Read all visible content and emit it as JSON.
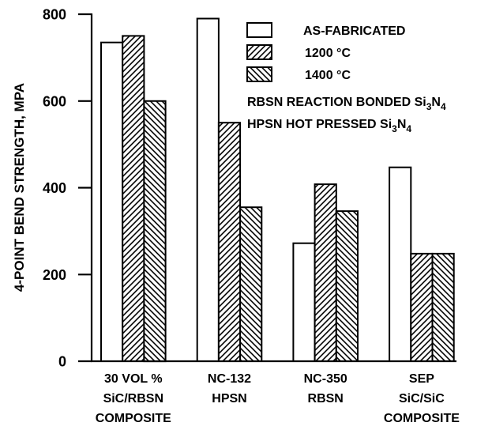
{
  "chart_data": {
    "type": "bar",
    "ylabel": "4-POINT BEND STRENGTH, MPA",
    "ylim": [
      0,
      800
    ],
    "yticks": [
      0,
      200,
      400,
      600,
      800
    ],
    "grid": false,
    "legend": "top-right",
    "categories": [
      [
        "30 VOL %",
        "SiC/RBSN",
        "COMPOSITE"
      ],
      [
        "NC-132",
        "HPSN"
      ],
      [
        "NC-350",
        "RBSN"
      ],
      [
        "SEP",
        "SiC/SiC",
        "COMPOSITE"
      ]
    ],
    "series": [
      {
        "name": "AS-FABRICATED",
        "values": [
          735,
          790,
          272,
          447
        ],
        "color": "#ffffff",
        "pattern": "solid"
      },
      {
        "name": "1200 °C",
        "values": [
          750,
          550,
          408,
          248
        ],
        "color": "#ffffff",
        "pattern": "diagonal-hatch-forward"
      },
      {
        "name": "1400 °C",
        "values": [
          600,
          355,
          346,
          248
        ],
        "color": "#ffffff",
        "pattern": "diagonal-hatch-backward"
      }
    ],
    "annotations": [
      "RBSN REACTION BONDED Si3N4",
      "HPSN HOT PRESSED Si3N4"
    ]
  }
}
